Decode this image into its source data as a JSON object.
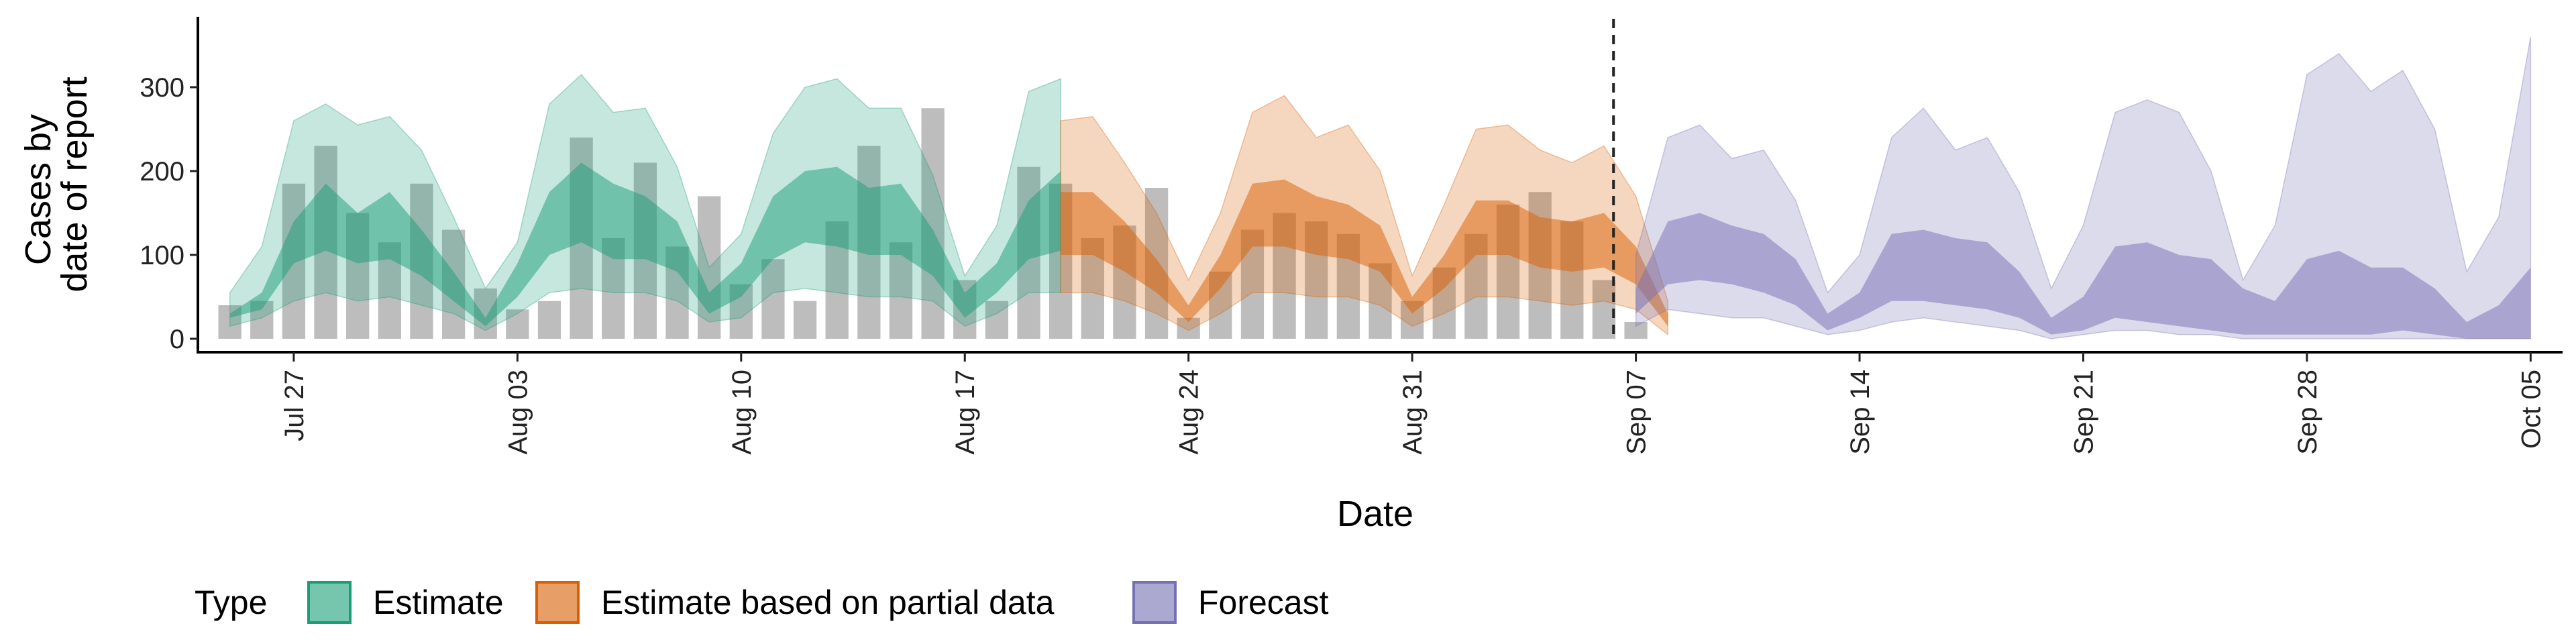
{
  "chart_data": {
    "type": "area",
    "xlabel": "Date",
    "ylabel_lines": [
      "Cases by",
      "date of report"
    ],
    "x_start": "2020-07-24",
    "x_end": "2020-10-06",
    "ylim": [
      0,
      360
    ],
    "yticks": [
      0,
      100,
      200,
      300
    ],
    "xticks": [
      {
        "date": "2020-07-27",
        "label": "Jul 27"
      },
      {
        "date": "2020-08-03",
        "label": "Aug 03"
      },
      {
        "date": "2020-08-10",
        "label": "Aug 10"
      },
      {
        "date": "2020-08-17",
        "label": "Aug 17"
      },
      {
        "date": "2020-08-24",
        "label": "Aug 24"
      },
      {
        "date": "2020-08-31",
        "label": "Aug 31"
      },
      {
        "date": "2020-09-07",
        "label": "Sep 07"
      },
      {
        "date": "2020-09-14",
        "label": "Sep 14"
      },
      {
        "date": "2020-09-21",
        "label": "Sep 21"
      },
      {
        "date": "2020-09-28",
        "label": "Sep 28"
      },
      {
        "date": "2020-10-05",
        "label": "Oct 05"
      }
    ],
    "forecast_date": "2020-09-06",
    "observed_cases": {
      "start_date": "2020-07-25",
      "values": [
        40,
        45,
        185,
        230,
        150,
        115,
        185,
        130,
        60,
        35,
        45,
        240,
        120,
        210,
        110,
        170,
        65,
        95,
        45,
        140,
        230,
        115,
        275,
        70,
        45,
        205,
        185,
        120,
        135,
        180,
        25,
        80,
        130,
        150,
        140,
        125,
        90,
        45,
        85,
        125,
        160,
        175,
        140,
        70,
        20
      ]
    },
    "series": [
      {
        "name": "Estimate",
        "color": "#1b9e77",
        "start_date": "2020-07-25",
        "outer_upper": [
          55,
          110,
          260,
          280,
          255,
          265,
          225,
          145,
          60,
          115,
          280,
          315,
          270,
          275,
          205,
          85,
          125,
          245,
          300,
          310,
          275,
          275,
          195,
          75,
          135,
          295,
          310
        ],
        "inner_upper": [
          30,
          55,
          140,
          185,
          150,
          175,
          130,
          80,
          25,
          90,
          175,
          210,
          185,
          170,
          140,
          55,
          90,
          170,
          200,
          205,
          180,
          185,
          130,
          55,
          90,
          165,
          200
        ],
        "inner_lower": [
          25,
          35,
          90,
          105,
          90,
          95,
          75,
          45,
          15,
          50,
          100,
          115,
          95,
          95,
          80,
          30,
          50,
          95,
          115,
          110,
          100,
          100,
          75,
          25,
          55,
          95,
          105
        ],
        "outer_lower": [
          15,
          25,
          45,
          55,
          45,
          50,
          40,
          30,
          10,
          30,
          55,
          60,
          55,
          55,
          45,
          20,
          25,
          55,
          60,
          55,
          50,
          50,
          45,
          15,
          30,
          55,
          55
        ]
      },
      {
        "name": "Estimate based on partial data",
        "color": "#d95f02",
        "start_date": "2020-08-20",
        "outer_upper": [
          260,
          265,
          210,
          150,
          70,
          150,
          270,
          290,
          240,
          255,
          200,
          75,
          160,
          250,
          255,
          225,
          210,
          230,
          170,
          45
        ],
        "inner_upper": [
          175,
          175,
          140,
          95,
          40,
          100,
          185,
          190,
          170,
          160,
          135,
          50,
          100,
          165,
          165,
          145,
          140,
          150,
          110,
          30
        ],
        "inner_lower": [
          100,
          100,
          80,
          55,
          20,
          60,
          110,
          110,
          100,
          95,
          80,
          30,
          60,
          100,
          100,
          85,
          80,
          85,
          65,
          15
        ],
        "outer_lower": [
          55,
          55,
          45,
          30,
          10,
          30,
          55,
          55,
          50,
          50,
          40,
          15,
          30,
          50,
          50,
          45,
          40,
          45,
          35,
          5
        ]
      },
      {
        "name": "Forecast",
        "color": "#7570b3",
        "start_date": "2020-09-07",
        "outer_upper": [
          100,
          240,
          255,
          215,
          225,
          165,
          55,
          100,
          240,
          275,
          225,
          240,
          175,
          60,
          135,
          270,
          285,
          270,
          200,
          70,
          135,
          315,
          340,
          295,
          320,
          250,
          80,
          145,
          360
        ],
        "inner_upper": [
          60,
          140,
          150,
          135,
          125,
          95,
          30,
          55,
          125,
          130,
          120,
          115,
          80,
          25,
          50,
          110,
          115,
          100,
          95,
          60,
          45,
          95,
          105,
          85,
          85,
          60,
          20,
          40,
          85
        ],
        "inner_lower": [
          30,
          65,
          70,
          65,
          55,
          40,
          10,
          25,
          45,
          45,
          40,
          35,
          25,
          5,
          10,
          25,
          20,
          15,
          10,
          5,
          5,
          5,
          5,
          5,
          10,
          5,
          0,
          0,
          0
        ],
        "outer_lower": [
          15,
          35,
          30,
          25,
          25,
          15,
          5,
          10,
          20,
          25,
          20,
          15,
          10,
          0,
          5,
          10,
          10,
          5,
          5,
          0,
          0,
          0,
          0,
          0,
          0,
          0,
          0,
          0,
          0
        ]
      }
    ],
    "legend_title": "Type",
    "legend_position": "bottom-left"
  }
}
